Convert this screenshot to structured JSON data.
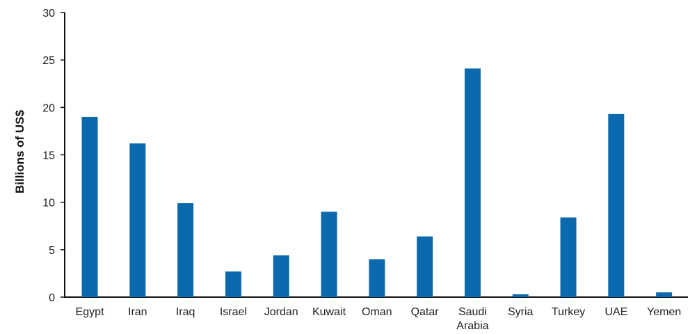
{
  "chart_data": {
    "type": "bar",
    "title": "",
    "xlabel": "",
    "ylabel": "Billions of US$",
    "ylim": [
      0,
      30
    ],
    "yticks": [
      0,
      5,
      10,
      15,
      20,
      25,
      30
    ],
    "grid": false,
    "legend": "none",
    "bar_color": "#0b6aad",
    "categories": [
      [
        "Egypt"
      ],
      [
        "Iran"
      ],
      [
        "Iraq"
      ],
      [
        "Israel"
      ],
      [
        "Jordan"
      ],
      [
        "Kuwait"
      ],
      [
        "Oman"
      ],
      [
        "Qatar"
      ],
      [
        "Saudi",
        "Arabia"
      ],
      [
        "Syria"
      ],
      [
        "Turkey"
      ],
      [
        "UAE"
      ],
      [
        "Yemen"
      ]
    ],
    "values": [
      19.0,
      16.2,
      9.9,
      2.7,
      4.4,
      9.0,
      4.0,
      6.4,
      24.1,
      0.3,
      8.4,
      19.3,
      0.5
    ]
  }
}
